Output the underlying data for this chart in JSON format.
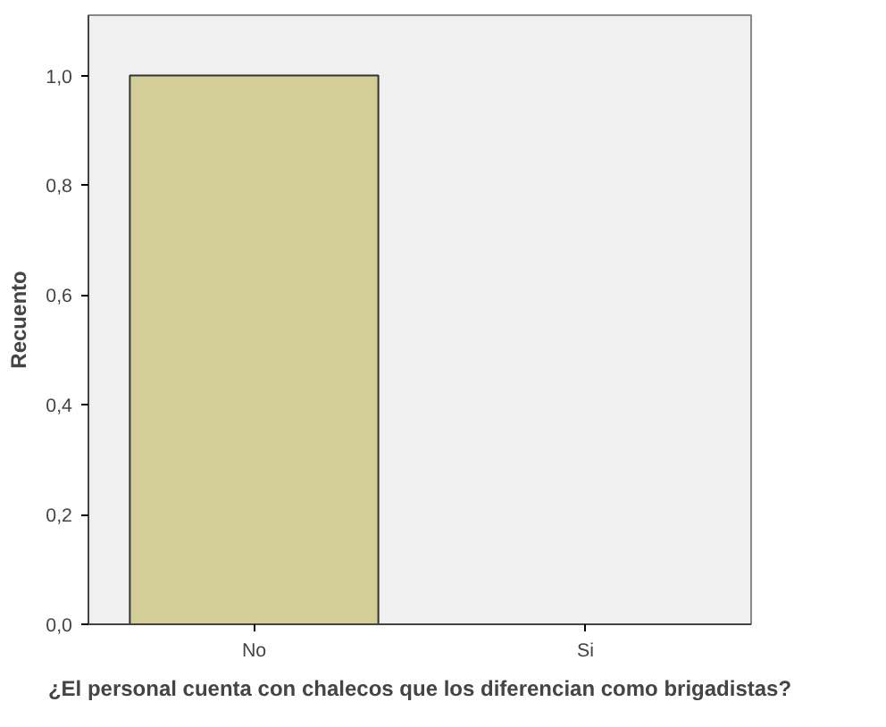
{
  "chart_data": {
    "type": "bar",
    "xlabel": "¿El personal cuenta con chalecos que los diferencian como brigadistas?",
    "ylabel": "Recuento",
    "categories": [
      "No",
      "Si"
    ],
    "values": [
      1.0,
      0
    ],
    "color": "#d3ce97",
    "ylim": [
      0,
      1.11
    ],
    "yticks": [
      {
        "value": 0,
        "label": "0,0"
      },
      {
        "value": 0.2,
        "label": "0,2"
      },
      {
        "value": 0.4,
        "label": "0,4"
      },
      {
        "value": 0.6,
        "label": "0,6"
      },
      {
        "value": 0.8,
        "label": "0,8"
      },
      {
        "value": 1.0,
        "label": "1,0"
      }
    ],
    "grid": false
  }
}
